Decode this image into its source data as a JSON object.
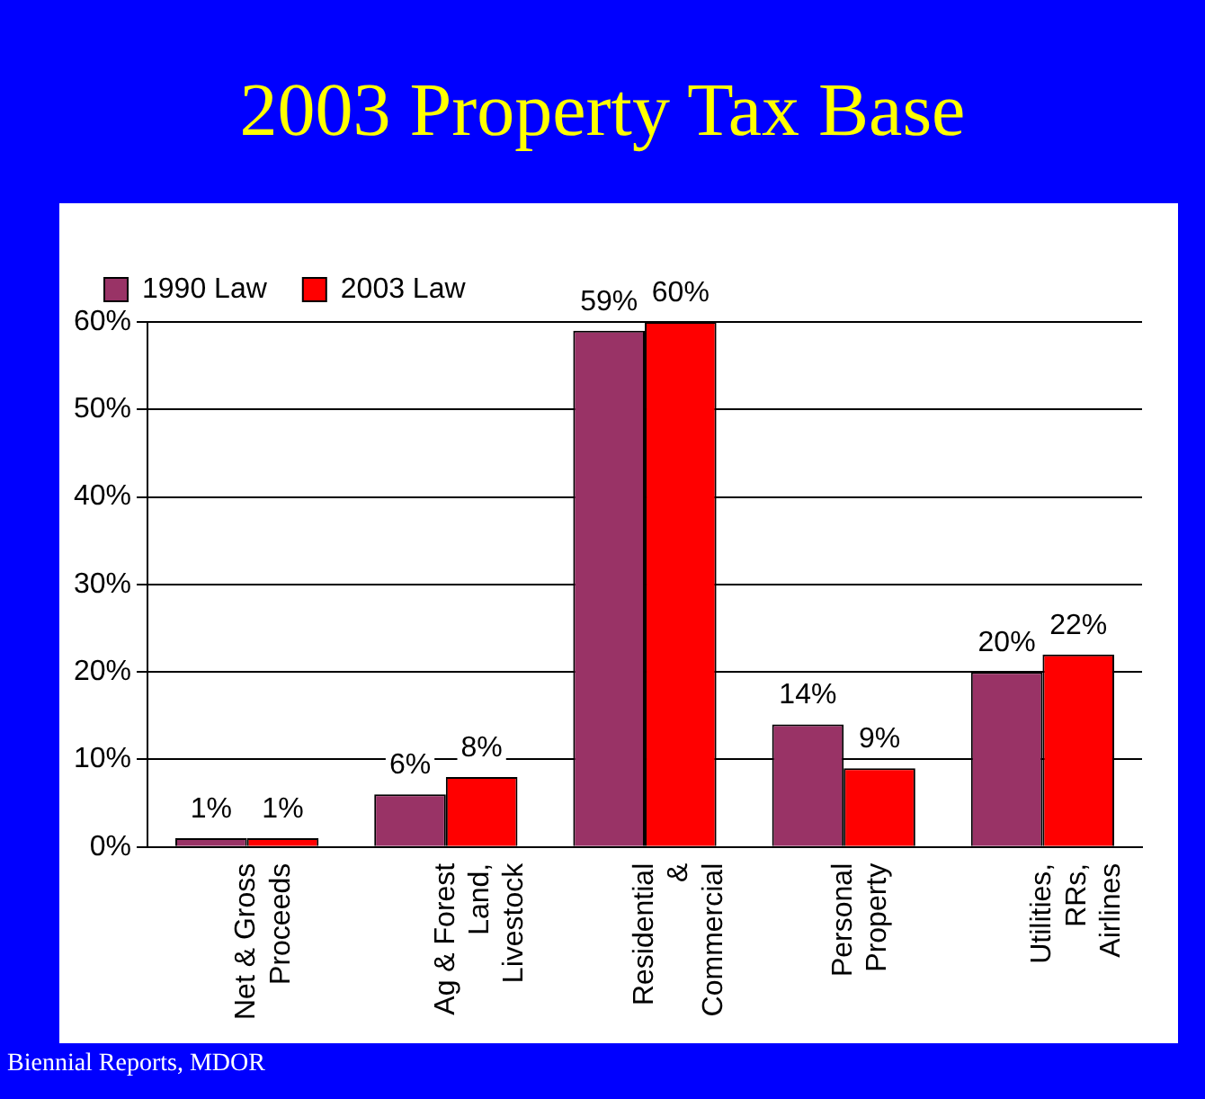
{
  "chart_data": {
    "type": "bar",
    "title": "2003 Property Tax Base",
    "categories": [
      "Net & Gross\nProceeds",
      "Ag & Forest\nLand,\nLivestock",
      "Residential\n&\nCommercial",
      "Personal\nProperty",
      "Utilities,\nRRs,\nAirlines"
    ],
    "series": [
      {
        "name": "1990 Law",
        "color": "#993366",
        "values": [
          1,
          6,
          59,
          14,
          20
        ],
        "value_labels": [
          "1%",
          "6%",
          "59%",
          "14%",
          "20%"
        ]
      },
      {
        "name": "2003 Law",
        "color": "#ff0000",
        "values": [
          1,
          8,
          60,
          9,
          22
        ],
        "value_labels": [
          "1%",
          "8%",
          "60%",
          "9%",
          "22%"
        ]
      }
    ],
    "ylim": [
      0,
      60
    ],
    "yticks": [
      {
        "value": 0,
        "label": "0%"
      },
      {
        "value": 10,
        "label": "10%"
      },
      {
        "value": 20,
        "label": "20%"
      },
      {
        "value": 30,
        "label": "30%"
      },
      {
        "value": 40,
        "label": "40%"
      },
      {
        "value": 50,
        "label": "50%"
      },
      {
        "value": 60,
        "label": "60%"
      }
    ],
    "grid": "y",
    "legend": "top left",
    "annotations": [
      "Biennial Reports, MDOR"
    ]
  }
}
